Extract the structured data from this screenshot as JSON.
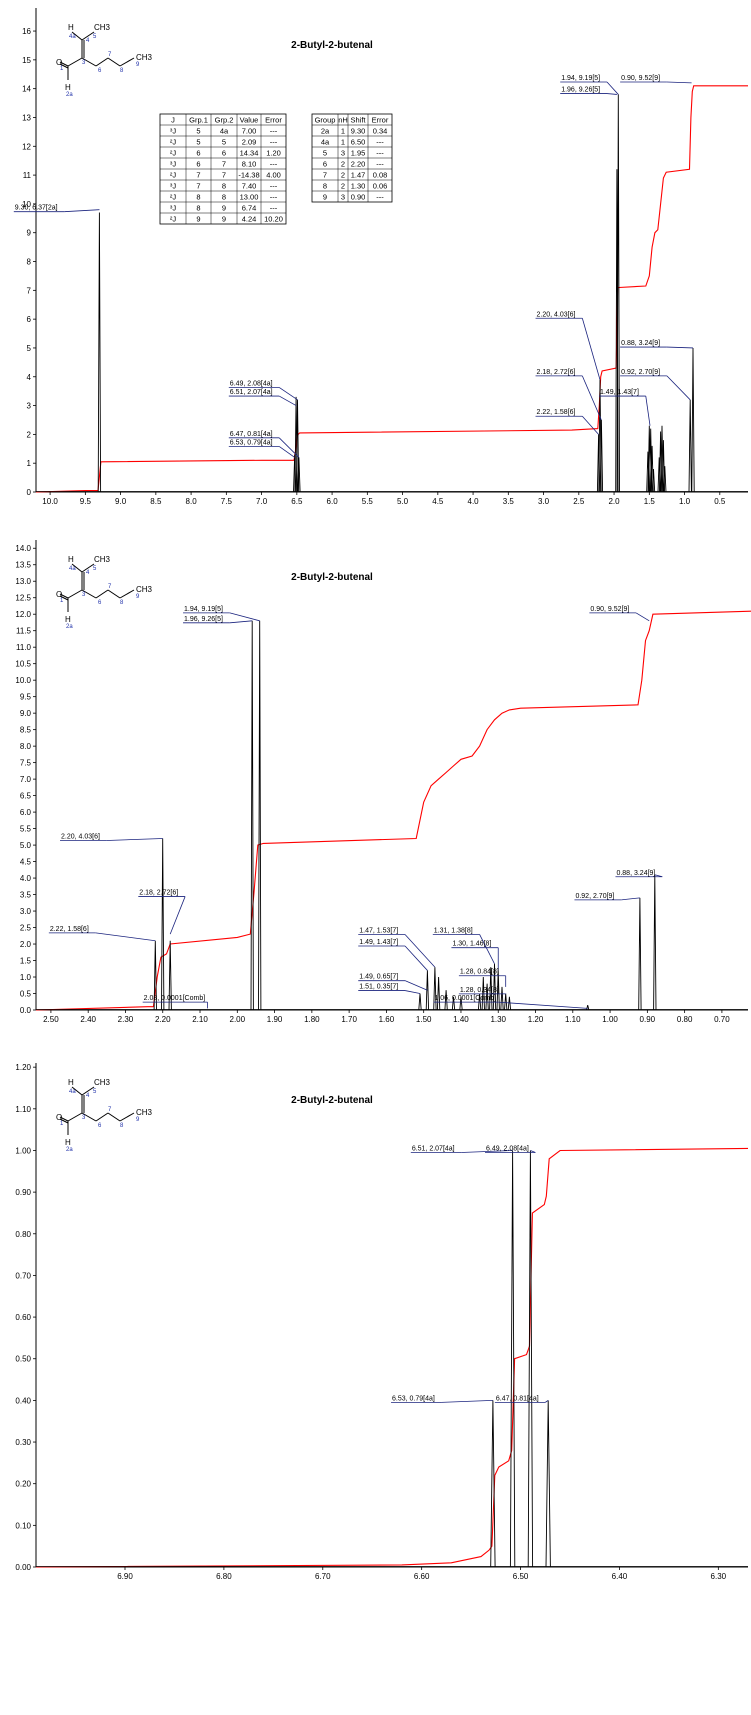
{
  "chart_data": [
    {
      "type": "line",
      "title": "2-Butyl-2-butenal",
      "xlim": [
        10.2,
        0.1
      ],
      "ylim": [
        0,
        16.8
      ],
      "xticks": [
        "10.0",
        "9.5",
        "9.0",
        "8.5",
        "8.0",
        "7.5",
        "7.0",
        "6.5",
        "6.0",
        "5.5",
        "5.0",
        "4.5",
        "4.0",
        "3.5",
        "3.0",
        "2.5",
        "2.0",
        "1.5",
        "1.0",
        "0.5"
      ],
      "yticks": [
        "0",
        "1",
        "2",
        "3",
        "4",
        "5",
        "6",
        "7",
        "8",
        "9",
        "10",
        "11",
        "12",
        "13",
        "14",
        "15",
        "16"
      ],
      "spectrum_peaks": [
        {
          "x": 9.3,
          "h": 9.7
        },
        {
          "x": 6.53,
          "h": 1.3
        },
        {
          "x": 6.51,
          "h": 3.3
        },
        {
          "x": 6.49,
          "h": 3.2
        },
        {
          "x": 6.47,
          "h": 1.2
        },
        {
          "x": 2.22,
          "h": 2.0
        },
        {
          "x": 2.2,
          "h": 3.9
        },
        {
          "x": 2.18,
          "h": 2.5
        },
        {
          "x": 1.96,
          "h": 11.2
        },
        {
          "x": 1.94,
          "h": 13.8
        },
        {
          "x": 1.52,
          "h": 1.4
        },
        {
          "x": 1.5,
          "h": 2.3
        },
        {
          "x": 1.48,
          "h": 2.2
        },
        {
          "x": 1.46,
          "h": 1.6
        },
        {
          "x": 1.44,
          "h": 0.8
        },
        {
          "x": 1.36,
          "h": 1.2
        },
        {
          "x": 1.34,
          "h": 2.1
        },
        {
          "x": 1.32,
          "h": 2.3
        },
        {
          "x": 1.3,
          "h": 1.8
        },
        {
          "x": 1.28,
          "h": 0.9
        },
        {
          "x": 0.92,
          "h": 3.2
        },
        {
          "x": 0.88,
          "h": 5.0
        }
      ],
      "integral": [
        [
          10.2,
          0
        ],
        [
          9.5,
          0.05
        ],
        [
          9.32,
          0.05
        ],
        [
          9.28,
          1.05
        ],
        [
          7.0,
          1.1
        ],
        [
          6.54,
          1.1
        ],
        [
          6.52,
          1.4
        ],
        [
          6.5,
          1.9
        ],
        [
          6.48,
          2.0
        ],
        [
          6.46,
          2.05
        ],
        [
          2.6,
          2.15
        ],
        [
          2.23,
          2.2
        ],
        [
          2.21,
          3.0
        ],
        [
          2.19,
          4.0
        ],
        [
          2.17,
          4.2
        ],
        [
          1.97,
          4.3
        ],
        [
          1.95,
          7.1
        ],
        [
          1.93,
          7.1
        ],
        [
          1.55,
          7.15
        ],
        [
          1.5,
          7.5
        ],
        [
          1.46,
          8.5
        ],
        [
          1.42,
          9.0
        ],
        [
          1.38,
          9.1
        ],
        [
          1.34,
          10.0
        ],
        [
          1.3,
          10.9
        ],
        [
          1.26,
          11.1
        ],
        [
          0.93,
          11.2
        ],
        [
          0.91,
          13.0
        ],
        [
          0.89,
          13.9
        ],
        [
          0.87,
          14.1
        ],
        [
          0.1,
          14.1
        ]
      ],
      "labels": [
        {
          "text": "9.30, 6.37[2a]",
          "x": 9.3,
          "y": 9.8,
          "tx": 9.8,
          "ty": 9.8
        },
        {
          "text": "6.49, 2.08[4a]",
          "x": 6.49,
          "y": 3.2,
          "tx": 6.75,
          "ty": 3.7
        },
        {
          "text": "6.51, 2.07[4a]",
          "x": 6.51,
          "y": 3.0,
          "tx": 6.75,
          "ty": 3.4
        },
        {
          "text": "6.47, 0.81[4a]",
          "x": 6.47,
          "y": 1.2,
          "tx": 6.75,
          "ty": 1.95
        },
        {
          "text": "6.53, 0.79[4a]",
          "x": 6.53,
          "y": 1.2,
          "tx": 6.75,
          "ty": 1.65
        },
        {
          "text": "1.94, 9.19[5]",
          "x": 1.94,
          "y": 13.8,
          "tx": 2.1,
          "ty": 14.3
        },
        {
          "text": "1.96, 9.26[5]",
          "x": 1.96,
          "y": 13.8,
          "tx": 2.1,
          "ty": 13.9
        },
        {
          "text": "0.90, 9.52[9]",
          "x": 0.9,
          "y": 14.2,
          "tx": 1.25,
          "ty": 14.3
        },
        {
          "text": "2.20, 4.03[6]",
          "x": 2.2,
          "y": 3.9,
          "tx": 2.45,
          "ty": 6.1
        },
        {
          "text": "2.18, 2.72[6]",
          "x": 2.18,
          "y": 2.5,
          "tx": 2.45,
          "ty": 4.1
        },
        {
          "text": "2.22, 1.58[6]",
          "x": 2.22,
          "y": 2.0,
          "tx": 2.45,
          "ty": 2.7
        },
        {
          "text": "0.88, 3.24[9]",
          "x": 0.88,
          "y": 5.0,
          "tx": 1.25,
          "ty": 5.1
        },
        {
          "text": "0.92, 2.70[9]",
          "x": 0.92,
          "y": 3.2,
          "tx": 1.25,
          "ty": 4.1
        },
        {
          "text": "1.49, 1.43[7]",
          "x": 1.49,
          "y": 2.3,
          "tx": 1.55,
          "ty": 3.4
        }
      ]
    },
    {
      "type": "line",
      "title": "2-Butyl-2-butenal",
      "xlim": [
        2.54,
        0.63
      ],
      "ylim": [
        0,
        14.25
      ],
      "xticks": [
        "2.50",
        "2.40",
        "2.30",
        "2.20",
        "2.10",
        "2.00",
        "1.90",
        "1.80",
        "1.70",
        "1.60",
        "1.50",
        "1.40",
        "1.30",
        "1.20",
        "1.10",
        "1.00",
        "0.90",
        "0.80",
        "0.70"
      ],
      "yticks": [
        "0.0",
        "0.5",
        "1.0",
        "1.5",
        "2.0",
        "2.5",
        "3.0",
        "3.5",
        "4.0",
        "4.5",
        "5.0",
        "5.5",
        "6.0",
        "6.5",
        "7.0",
        "7.5",
        "8.0",
        "8.5",
        "9.0",
        "9.5",
        "10.0",
        "10.5",
        "11.0",
        "11.5",
        "12.0",
        "12.5",
        "13.0",
        "13.5",
        "14.0"
      ],
      "spectrum_peaks": [
        {
          "x": 2.22,
          "h": 2.1
        },
        {
          "x": 2.2,
          "h": 5.2
        },
        {
          "x": 2.18,
          "h": 2.1
        },
        {
          "x": 1.96,
          "h": 11.8
        },
        {
          "x": 1.94,
          "h": 11.8
        },
        {
          "x": 1.51,
          "h": 0.5
        },
        {
          "x": 1.49,
          "h": 1.2
        },
        {
          "x": 1.47,
          "h": 1.3
        },
        {
          "x": 1.46,
          "h": 1.0
        },
        {
          "x": 1.44,
          "h": 0.6
        },
        {
          "x": 1.42,
          "h": 0.4
        },
        {
          "x": 1.4,
          "h": 0.4
        },
        {
          "x": 1.35,
          "h": 0.5
        },
        {
          "x": 1.34,
          "h": 1.0
        },
        {
          "x": 1.33,
          "h": 0.8
        },
        {
          "x": 1.32,
          "h": 1.3
        },
        {
          "x": 1.31,
          "h": 1.4
        },
        {
          "x": 1.3,
          "h": 1.2
        },
        {
          "x": 1.29,
          "h": 0.7
        },
        {
          "x": 1.28,
          "h": 0.5
        },
        {
          "x": 1.27,
          "h": 0.4
        },
        {
          "x": 1.06,
          "h": 0.15
        },
        {
          "x": 0.92,
          "h": 3.4
        },
        {
          "x": 0.88,
          "h": 4.1
        }
      ],
      "integral": [
        [
          2.54,
          0
        ],
        [
          2.24,
          0.1
        ],
        [
          2.225,
          0.1
        ],
        [
          2.215,
          1.0
        ],
        [
          2.205,
          1.6
        ],
        [
          2.19,
          1.7
        ],
        [
          2.18,
          2.0
        ],
        [
          2.0,
          2.2
        ],
        [
          1.965,
          2.3
        ],
        [
          1.955,
          3.6
        ],
        [
          1.945,
          5.0
        ],
        [
          1.93,
          5.05
        ],
        [
          1.52,
          5.2
        ],
        [
          1.5,
          6.3
        ],
        [
          1.48,
          6.8
        ],
        [
          1.46,
          7.0
        ],
        [
          1.44,
          7.2
        ],
        [
          1.42,
          7.4
        ],
        [
          1.4,
          7.6
        ],
        [
          1.37,
          7.7
        ],
        [
          1.35,
          8.0
        ],
        [
          1.33,
          8.5
        ],
        [
          1.31,
          8.8
        ],
        [
          1.29,
          9.0
        ],
        [
          1.27,
          9.1
        ],
        [
          1.24,
          9.15
        ],
        [
          0.925,
          9.25
        ],
        [
          0.915,
          10.0
        ],
        [
          0.905,
          11.2
        ],
        [
          0.895,
          11.5
        ],
        [
          0.885,
          12.0
        ],
        [
          0.6,
          12.1
        ]
      ],
      "labels": [
        {
          "text": "1.94, 9.19[5]",
          "x": 1.94,
          "y": 11.8,
          "tx": 2.02,
          "ty": 12.1
        },
        {
          "text": "1.96, 9.26[5]",
          "x": 1.96,
          "y": 11.8,
          "tx": 2.02,
          "ty": 11.8
        },
        {
          "text": "0.90, 9.52[9]",
          "x": 0.895,
          "y": 11.8,
          "tx": 0.93,
          "ty": 12.1
        },
        {
          "text": "2.20, 4.03[6]",
          "x": 2.2,
          "y": 5.2,
          "tx": 2.35,
          "ty": 5.2
        },
        {
          "text": "2.18, 2.72[6]",
          "x": 2.18,
          "y": 2.3,
          "tx": 2.14,
          "ty": 3.5
        },
        {
          "text": "2.22, 1.58[6]",
          "x": 2.22,
          "y": 2.1,
          "tx": 2.38,
          "ty": 2.4
        },
        {
          "text": "2.08, 0.0001[Comb]",
          "x": 2.08,
          "y": 0.05,
          "tx": 2.08,
          "ty": 0.3
        },
        {
          "text": "1.47, 1.53[7]",
          "x": 1.47,
          "y": 1.3,
          "tx": 1.55,
          "ty": 2.35
        },
        {
          "text": "1.49, 1.43[7]",
          "x": 1.49,
          "y": 1.2,
          "tx": 1.55,
          "ty": 2.0
        },
        {
          "text": "1.49, 0.65[7]",
          "x": 1.49,
          "y": 0.6,
          "tx": 1.55,
          "ty": 0.95
        },
        {
          "text": "1.51, 0.35[7]",
          "x": 1.51,
          "y": 0.5,
          "tx": 1.55,
          "ty": 0.65
        },
        {
          "text": "1.31, 1.38[8]",
          "x": 1.31,
          "y": 1.4,
          "tx": 1.35,
          "ty": 2.35
        },
        {
          "text": "1.30, 1.46[8]",
          "x": 1.3,
          "y": 1.2,
          "tx": 1.3,
          "ty": 1.95
        },
        {
          "text": "1.28, 0.84[8]",
          "x": 1.28,
          "y": 0.7,
          "tx": 1.28,
          "ty": 1.1
        },
        {
          "text": "1.28, 0.34[8]",
          "x": 1.28,
          "y": 0.5,
          "tx": 1.28,
          "ty": 0.55
        },
        {
          "text": "1.06, 0.0001[Comb]",
          "x": 1.06,
          "y": 0.05,
          "tx": 1.3,
          "ty": 0.3
        },
        {
          "text": "0.92, 2.70[9]",
          "x": 0.92,
          "y": 3.4,
          "tx": 0.97,
          "ty": 3.4
        },
        {
          "text": "0.88, 3.24[9]",
          "x": 0.88,
          "y": 4.1,
          "tx": 0.86,
          "ty": 4.1
        }
      ]
    },
    {
      "type": "line",
      "title": "2-Butyl-2-butenal",
      "xlim": [
        6.99,
        6.27
      ],
      "ylim": [
        0,
        1.21
      ],
      "xticks": [
        "6.90",
        "6.80",
        "6.70",
        "6.60",
        "6.50",
        "6.40",
        "6.30"
      ],
      "yticks": [
        "0.00",
        "0.10",
        "0.20",
        "0.30",
        "0.40",
        "0.50",
        "0.60",
        "0.70",
        "0.80",
        "0.90",
        "1.00",
        "1.10",
        "1.20"
      ],
      "spectrum_peaks": [
        {
          "x": 6.528,
          "h": 0.4
        },
        {
          "x": 6.508,
          "h": 1.0
        },
        {
          "x": 6.49,
          "h": 1.0
        },
        {
          "x": 6.472,
          "h": 0.4
        }
      ],
      "integral": [
        [
          6.99,
          0.0
        ],
        [
          6.62,
          0.005
        ],
        [
          6.57,
          0.01
        ],
        [
          6.54,
          0.025
        ],
        [
          6.532,
          0.04
        ],
        [
          6.529,
          0.05
        ],
        [
          6.526,
          0.22
        ],
        [
          6.522,
          0.24
        ],
        [
          6.512,
          0.255
        ],
        [
          6.509,
          0.28
        ],
        [
          6.506,
          0.5
        ],
        [
          6.494,
          0.51
        ],
        [
          6.491,
          0.53
        ],
        [
          6.488,
          0.85
        ],
        [
          6.476,
          0.87
        ],
        [
          6.474,
          0.89
        ],
        [
          6.471,
          0.98
        ],
        [
          6.46,
          1.0
        ],
        [
          6.27,
          1.005
        ]
      ],
      "labels": [
        {
          "text": "6.51, 2.07[4a]",
          "x": 6.508,
          "y": 1.0,
          "tx": 6.56,
          "ty": 1.0
        },
        {
          "text": "6.49, 2.08[4a]",
          "x": 6.49,
          "y": 1.0,
          "tx": 6.485,
          "ty": 1.0
        },
        {
          "text": "6.53, 0.79[4a]",
          "x": 6.528,
          "y": 0.4,
          "tx": 6.58,
          "ty": 0.4
        },
        {
          "text": "6.47, 0.81[4a]",
          "x": 6.472,
          "y": 0.4,
          "tx": 6.475,
          "ty": 0.4
        }
      ]
    }
  ],
  "molecule": {
    "labels": {
      "H": "H",
      "O": "O",
      "CH3": "CH3",
      "CH3_sub": "3",
      "H_top": "H"
    },
    "numbers": [
      "1",
      "2a",
      "3",
      "4",
      "4a",
      "5",
      "6",
      "7",
      "8",
      "9"
    ]
  },
  "tables": {
    "coupling": {
      "headers": [
        "J",
        "Grp.1",
        "Grp.2",
        "Value",
        "Error"
      ],
      "rows": [
        [
          "³J",
          "5",
          "4a",
          "7.00",
          "---"
        ],
        [
          "²J",
          "5",
          "5",
          "2.09",
          "---"
        ],
        [
          "²J",
          "6",
          "6",
          "14.34",
          "1.20"
        ],
        [
          "³J",
          "6",
          "7",
          "8.10",
          "---"
        ],
        [
          "²J",
          "7",
          "7",
          "-14.38",
          "4.00"
        ],
        [
          "³J",
          "7",
          "8",
          "7.40",
          "---"
        ],
        [
          "²J",
          "8",
          "8",
          "13.00",
          "---"
        ],
        [
          "³J",
          "8",
          "9",
          "6.74",
          "---"
        ],
        [
          "²J",
          "9",
          "9",
          "4.24",
          "10.20"
        ]
      ]
    },
    "shift": {
      "headers": [
        "Group",
        "nH",
        "Shift",
        "Error"
      ],
      "rows": [
        [
          "2a",
          "1",
          "9.30",
          "0.34"
        ],
        [
          "4a",
          "1",
          "6.50",
          "---"
        ],
        [
          "5",
          "3",
          "1.95",
          "---"
        ],
        [
          "6",
          "2",
          "2.20",
          "---"
        ],
        [
          "7",
          "2",
          "1.47",
          "0.08"
        ],
        [
          "8",
          "2",
          "1.30",
          "0.06"
        ],
        [
          "9",
          "3",
          "0.90",
          "---"
        ]
      ]
    }
  },
  "colors": {
    "spectrum": "#000000",
    "integral": "#ff0000",
    "label": "#1a237e",
    "axis": "#000000"
  }
}
